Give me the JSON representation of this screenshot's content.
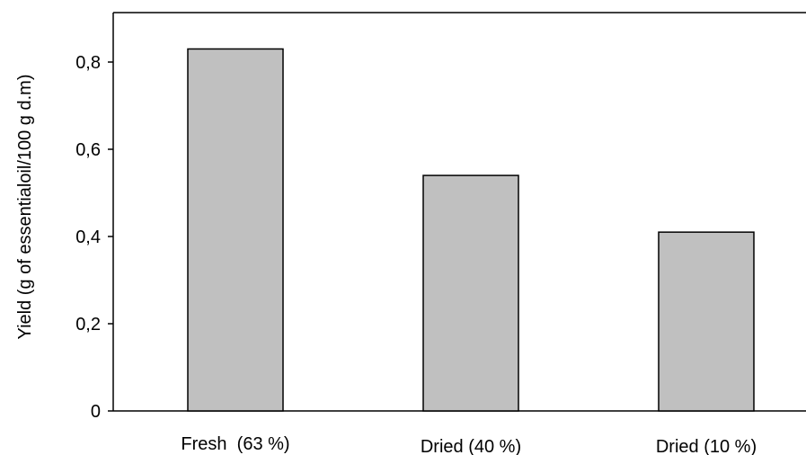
{
  "chart_data": {
    "type": "bar",
    "categories": [
      "Fresh  (63 %)",
      "Dried (40 %)",
      "Dried (10 %)"
    ],
    "values": [
      0.83,
      0.54,
      0.41
    ],
    "title": "",
    "xlabel": "",
    "ylabel": "Yield (g of essentialoil/100 g d.m)",
    "ylim": [
      0,
      0.9
    ],
    "yticks": [
      0,
      0.2,
      0.4,
      0.6,
      0.8
    ],
    "ytick_labels": [
      "0",
      "0,2",
      "0,4",
      "0,6",
      "0,8"
    ],
    "grid": false,
    "bar_color": "#c0c0c0",
    "bar_edge_color": "#000000"
  }
}
